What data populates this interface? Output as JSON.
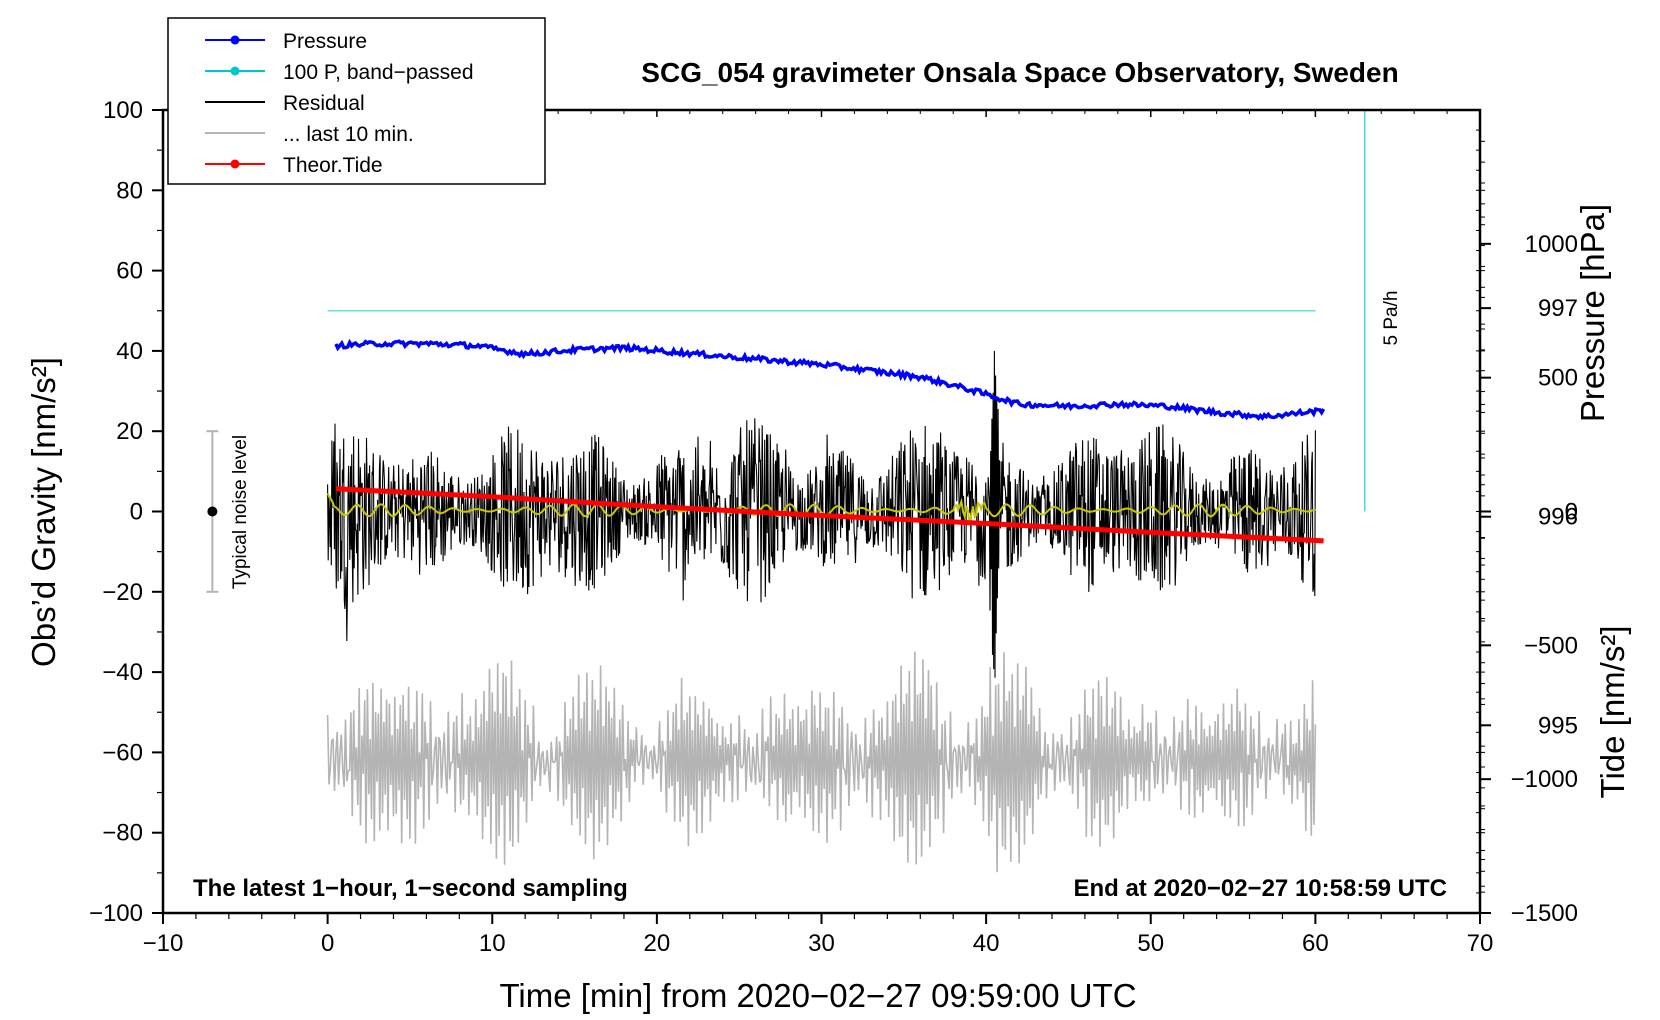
{
  "chart_data": {
    "type": "line",
    "title": "SCG_054 gravimeter Onsala Space Observatory, Sweden",
    "xlabel": "Time [min] from 2020−02−27 09:59:00 UTC",
    "ylabel_left": "Obs’d Gravity [nm/s²]",
    "ylabel_right_pressure": "Pressure [hPa]",
    "ylabel_right_tide": "Tide [nm/s²]",
    "xlim": [
      -10,
      70
    ],
    "ylim": [
      -100,
      100
    ],
    "pressure_lim": [
      994.1,
      997.95
    ],
    "tide_lim": [
      -1500,
      1500
    ],
    "x_ticks": [
      "−10",
      "0",
      "10",
      "20",
      "30",
      "40",
      "50",
      "60",
      "70"
    ],
    "y_ticks": [
      "−100",
      "−80",
      "−60",
      "−40",
      "−20",
      "0",
      "20",
      "40",
      "60",
      "80",
      "100"
    ],
    "pressure_ticks": [
      "995",
      "996",
      "997"
    ],
    "tide_ticks": [
      "−1500",
      "−1000",
      "−500",
      "0",
      "500",
      "1000"
    ],
    "footer_left": "The latest 1−hour, 1−second sampling",
    "footer_right": "End at 2020−02−27 10:58:59 UTC",
    "legend": [
      {
        "label": "Pressure",
        "color": "#0000ff",
        "marker": true
      },
      {
        "label": "100 P, band−passed",
        "color": "#00c8c8",
        "marker": true
      },
      {
        "label": "Residual",
        "color": "#000000",
        "marker": false
      },
      {
        "label": "... last 10 min.",
        "color": "#b4b4b4",
        "marker": false
      },
      {
        "label": "Theor.Tide",
        "color": "#ff0000",
        "marker": true
      }
    ],
    "noise_bar": {
      "label": "Typical noise level",
      "x": -7,
      "center": 0,
      "half_width": 20
    },
    "rate_bar": {
      "label": "5 Pa/h",
      "x": 63,
      "from": 0,
      "to": 100
    },
    "series": [
      {
        "name": "Pressure",
        "axis": "pressure",
        "color": "#0000ff",
        "x": [
          0.5,
          3,
          6,
          9,
          12,
          15,
          18,
          21,
          24,
          27,
          30,
          33,
          36,
          39,
          42,
          45,
          48,
          51,
          54,
          57,
          60.5
        ],
        "values": [
          996.82,
          996.83,
          996.83,
          996.82,
          996.78,
          996.8,
          996.81,
          996.79,
          996.77,
          996.75,
          996.73,
          996.7,
          996.67,
          996.61,
          996.54,
          996.53,
          996.54,
          996.53,
          996.5,
          996.48,
          996.51
        ]
      },
      {
        "name": "100 P, band−passed",
        "axis": "gravity",
        "color": "#00c8c8",
        "x": [
          0,
          60
        ],
        "values": [
          50,
          50
        ]
      },
      {
        "name": "Theor.Tide",
        "axis": "tide",
        "color": "#ff0000",
        "x": [
          0.5,
          10,
          20,
          30,
          40,
          50,
          60.5
        ],
        "values": [
          85,
          55,
          18,
          -15,
          -45,
          -78,
          -110
        ]
      },
      {
        "name": "Residual",
        "axis": "gravity",
        "color": "#000000",
        "x_range": [
          0,
          60
        ],
        "amplitude": 24,
        "bursts": [
          {
            "x": 40.5,
            "peak": 40,
            "trough": -46
          }
        ]
      },
      {
        "name": "... last 10 min.",
        "axis": "gravity",
        "color": "#b4b4b4",
        "x_range": [
          0,
          60
        ],
        "center": -62,
        "amplitude": 25
      },
      {
        "name": "band−passed gravity",
        "axis": "gravity",
        "color": "#c8c800",
        "x_range": [
          0,
          60
        ],
        "center": 0.3,
        "amplitude": 1.5
      }
    ]
  }
}
